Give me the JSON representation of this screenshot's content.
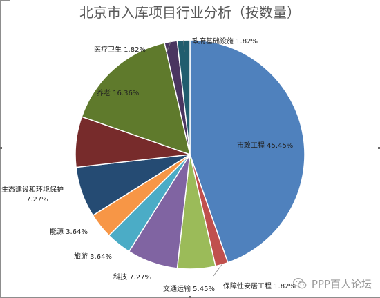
{
  "chart_data": {
    "type": "pie",
    "title": "北京市入库项目行业分析（按数量）",
    "start_angle_deg": 0,
    "direction": "clockwise",
    "slices": [
      {
        "label": "市政工程",
        "value": 45.45,
        "value_text": "45.45%",
        "color": "#4f81bd"
      },
      {
        "label": "保障性安居工程",
        "value": 1.82,
        "value_text": "1.82%",
        "color": "#c0504d"
      },
      {
        "label": "交通运输",
        "value": 5.45,
        "value_text": "5.45%",
        "color": "#9bbb59"
      },
      {
        "label": "科技",
        "value": 7.27,
        "value_text": "7.27%",
        "color": "#8064a2"
      },
      {
        "label": "旅游",
        "value": 3.64,
        "value_text": "3.64%",
        "color": "#4bacc6"
      },
      {
        "label": "能源",
        "value": 3.64,
        "value_text": "3.64%",
        "color": "#f79646"
      },
      {
        "label": "生态建设和环境保护",
        "value": 7.27,
        "value_text": "7.27%",
        "color": "#254b73"
      },
      {
        "label": "",
        "value": 7.27,
        "value_text": "",
        "color": "#772b2b"
      },
      {
        "label": "养老",
        "value": 16.36,
        "value_text": "16.36%",
        "color": "#5f7a2c"
      },
      {
        "label": "医疗卫生",
        "value": 1.82,
        "value_text": "1.82%",
        "color": "#4a3560"
      },
      {
        "label": "政府基础设施",
        "value": 1.82,
        "value_text": "1.82%",
        "color": "#215d6e"
      }
    ]
  },
  "watermark": {
    "text": "PPP百人论坛",
    "icon": "wechat-icon"
  }
}
